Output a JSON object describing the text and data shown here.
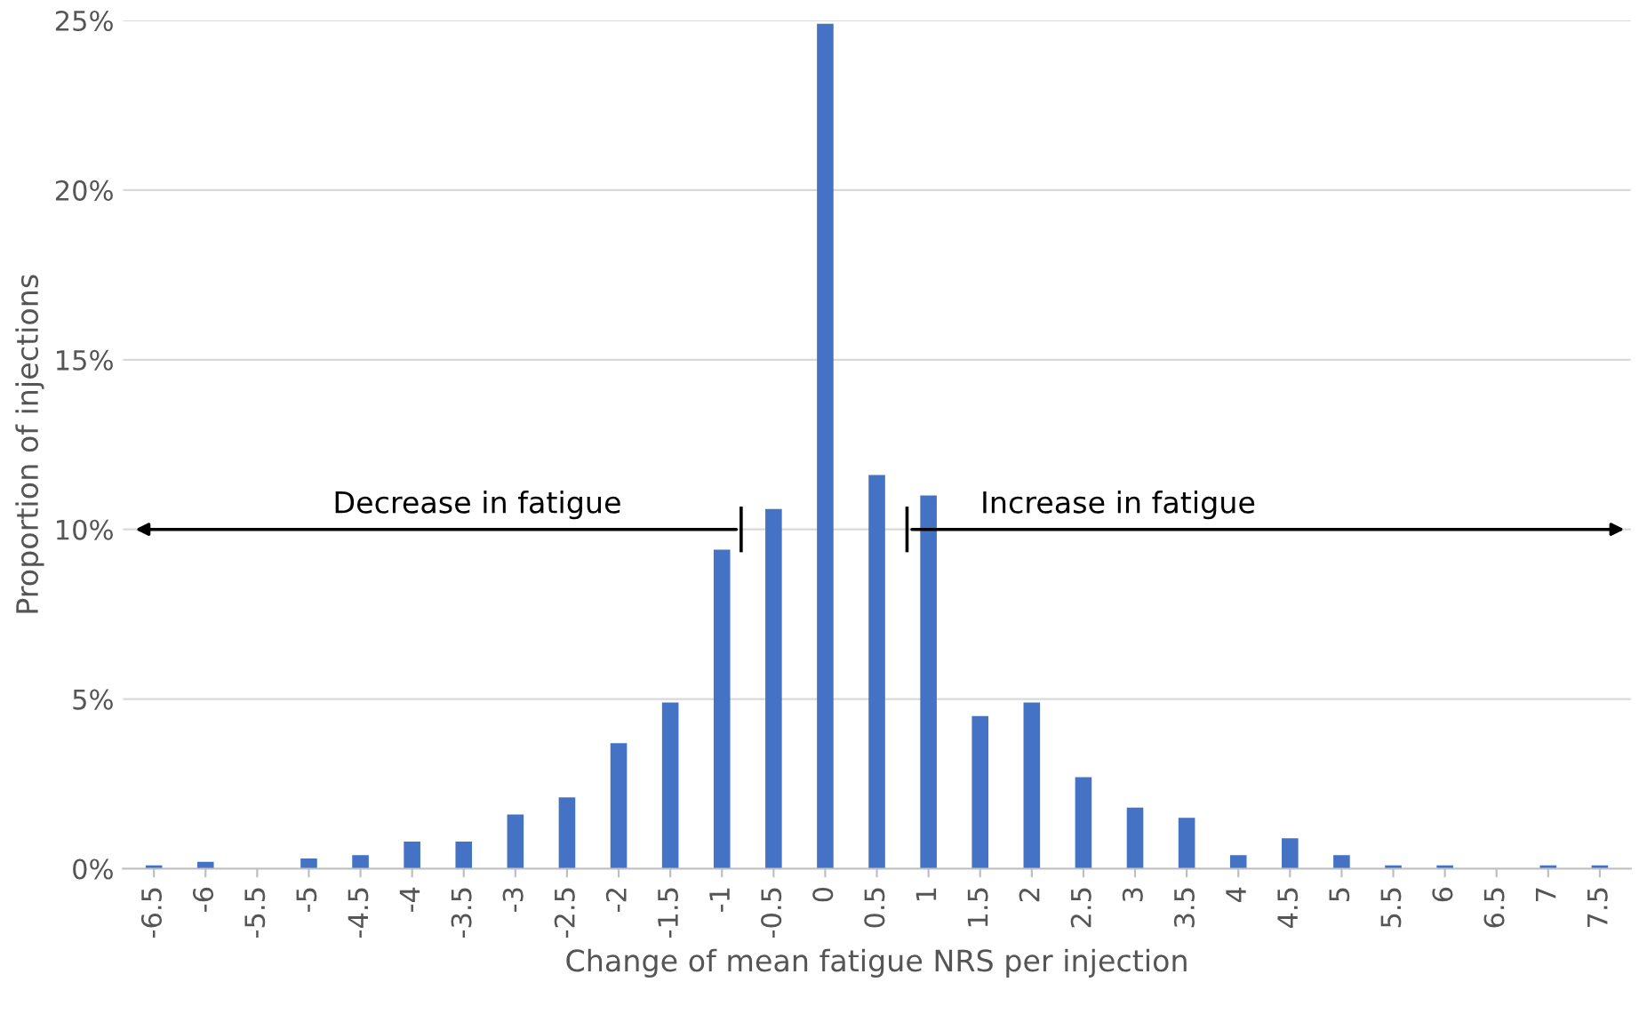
{
  "chart_data": {
    "type": "bar",
    "xlabel": "Change of mean fatigue NRS per injection",
    "ylabel": "Proportion of injections",
    "categories": [
      "-6.5",
      "-6",
      "-5.5",
      "-5",
      "-4.5",
      "-4",
      "-3.5",
      "-3",
      "-2.5",
      "-2",
      "-1.5",
      "-1",
      "-0.5",
      "0",
      "0.5",
      "1",
      "1.5",
      "2",
      "2.5",
      "3",
      "3.5",
      "4",
      "4.5",
      "5",
      "5.5",
      "6",
      "6.5",
      "7",
      "7.5"
    ],
    "values": [
      0.1,
      0.2,
      0,
      0.3,
      0.4,
      0.8,
      0.8,
      1.6,
      2.1,
      3.7,
      4.9,
      9.4,
      10.6,
      24.9,
      11.6,
      11.0,
      4.5,
      4.9,
      2.7,
      1.8,
      1.5,
      0.4,
      0.9,
      0.4,
      0.1,
      0.1,
      0,
      0.1,
      0.1
    ],
    "color": "#4472c4",
    "ylim": [
      0,
      25
    ],
    "yticks": [
      {
        "value": 0,
        "label": "0%"
      },
      {
        "value": 5,
        "label": "5%"
      },
      {
        "value": 10,
        "label": "10%"
      },
      {
        "value": 15,
        "label": "15%"
      },
      {
        "value": 20,
        "label": "20%"
      },
      {
        "value": 25,
        "label": "25%"
      }
    ],
    "grid": "y",
    "annotations": [
      "Decrease in fatigue",
      "Increase in fatigue"
    ]
  }
}
